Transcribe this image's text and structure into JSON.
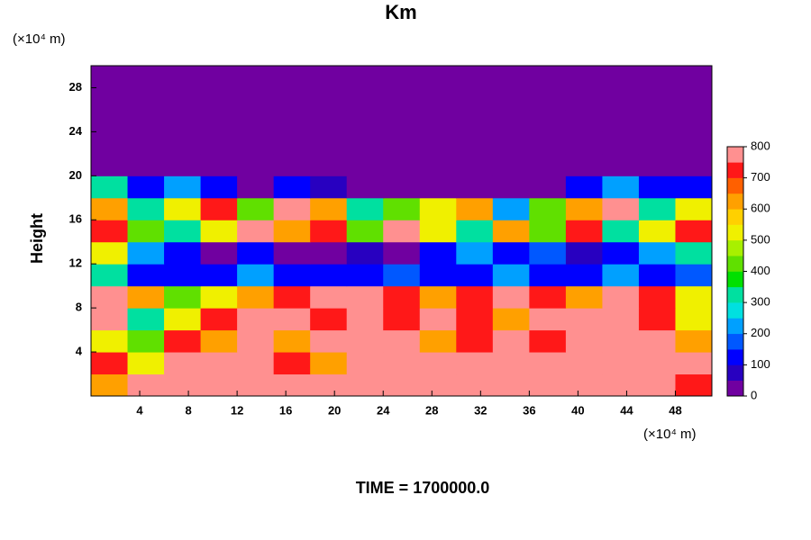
{
  "chart_data": {
    "type": "contour",
    "title": "Km",
    "ylabel": "Height",
    "y_unit": "(×10⁴ m)",
    "x_unit": "(×10⁴ m)",
    "caption": "TIME = 1700000.0",
    "xlim": [
      0,
      51
    ],
    "ylim": [
      0,
      30
    ],
    "xticks": [
      4,
      8,
      12,
      16,
      20,
      24,
      28,
      32,
      36,
      40,
      44,
      48
    ],
    "yticks": [
      4,
      8,
      12,
      16,
      20,
      24,
      28
    ],
    "x": [
      1.5,
      4.5,
      7.5,
      10.5,
      13.5,
      16.5,
      19.5,
      22.5,
      25.5,
      28.5,
      31.5,
      34.5,
      37.5,
      40.5,
      43.5,
      46.5,
      49.5
    ],
    "y": [
      1,
      3,
      5,
      7,
      9,
      11,
      13,
      15,
      17,
      19,
      21,
      23,
      25,
      27,
      29
    ],
    "z": [
      [
        600,
        800,
        800,
        800,
        800,
        800,
        800,
        800,
        800,
        800,
        800,
        800,
        800,
        800,
        800,
        800,
        700
      ],
      [
        700,
        500,
        800,
        800,
        800,
        700,
        600,
        800,
        800,
        800,
        800,
        800,
        800,
        800,
        800,
        800,
        800
      ],
      [
        500,
        400,
        700,
        600,
        800,
        600,
        800,
        800,
        800,
        600,
        700,
        800,
        700,
        800,
        800,
        800,
        600
      ],
      [
        800,
        300,
        500,
        700,
        800,
        800,
        700,
        800,
        700,
        800,
        700,
        600,
        800,
        800,
        800,
        700,
        500
      ],
      [
        800,
        600,
        400,
        500,
        600,
        700,
        800,
        800,
        700,
        600,
        700,
        800,
        700,
        600,
        800,
        700,
        500
      ],
      [
        300,
        100,
        100,
        100,
        200,
        100,
        100,
        100,
        150,
        100,
        100,
        200,
        100,
        100,
        200,
        100,
        150
      ],
      [
        500,
        200,
        100,
        0,
        100,
        0,
        0,
        50,
        0,
        100,
        200,
        100,
        150,
        50,
        100,
        200,
        300
      ],
      [
        700,
        400,
        300,
        500,
        800,
        600,
        700,
        400,
        800,
        500,
        300,
        600,
        400,
        700,
        300,
        500,
        700
      ],
      [
        600,
        300,
        500,
        700,
        400,
        800,
        600,
        300,
        400,
        500,
        600,
        200,
        400,
        600,
        800,
        300,
        500
      ],
      [
        300,
        100,
        200,
        100,
        0,
        100,
        50,
        0,
        0,
        0,
        0,
        0,
        0,
        100,
        200,
        100,
        100
      ],
      [
        0,
        0,
        0,
        0,
        0,
        0,
        0,
        0,
        0,
        0,
        0,
        0,
        0,
        0,
        0,
        0,
        0
      ],
      [
        0,
        0,
        0,
        0,
        0,
        0,
        0,
        0,
        0,
        0,
        0,
        0,
        0,
        0,
        0,
        0,
        0
      ],
      [
        0,
        0,
        0,
        0,
        0,
        0,
        0,
        0,
        0,
        0,
        0,
        0,
        0,
        0,
        0,
        0,
        0
      ],
      [
        0,
        0,
        0,
        0,
        0,
        0,
        0,
        0,
        0,
        0,
        0,
        0,
        0,
        0,
        0,
        0,
        0
      ],
      [
        0,
        0,
        0,
        0,
        0,
        0,
        0,
        0,
        0,
        0,
        0,
        0,
        0,
        0,
        0,
        0,
        0
      ]
    ],
    "levels": [
      0,
      50,
      100,
      150,
      200,
      250,
      300,
      350,
      400,
      450,
      500,
      550,
      600,
      650,
      700,
      750,
      800
    ],
    "colors": [
      "#7000a0",
      "#2800c0",
      "#0000ff",
      "#0058ff",
      "#00a0ff",
      "#00e0e0",
      "#00e0a0",
      "#00e000",
      "#60e000",
      "#a8f000",
      "#f0f000",
      "#ffd000",
      "#ffa000",
      "#ff6000",
      "#ff1818",
      "#ff9090"
    ],
    "colorbar_ticks": [
      0,
      100,
      200,
      300,
      400,
      500,
      600,
      700,
      800
    ]
  }
}
